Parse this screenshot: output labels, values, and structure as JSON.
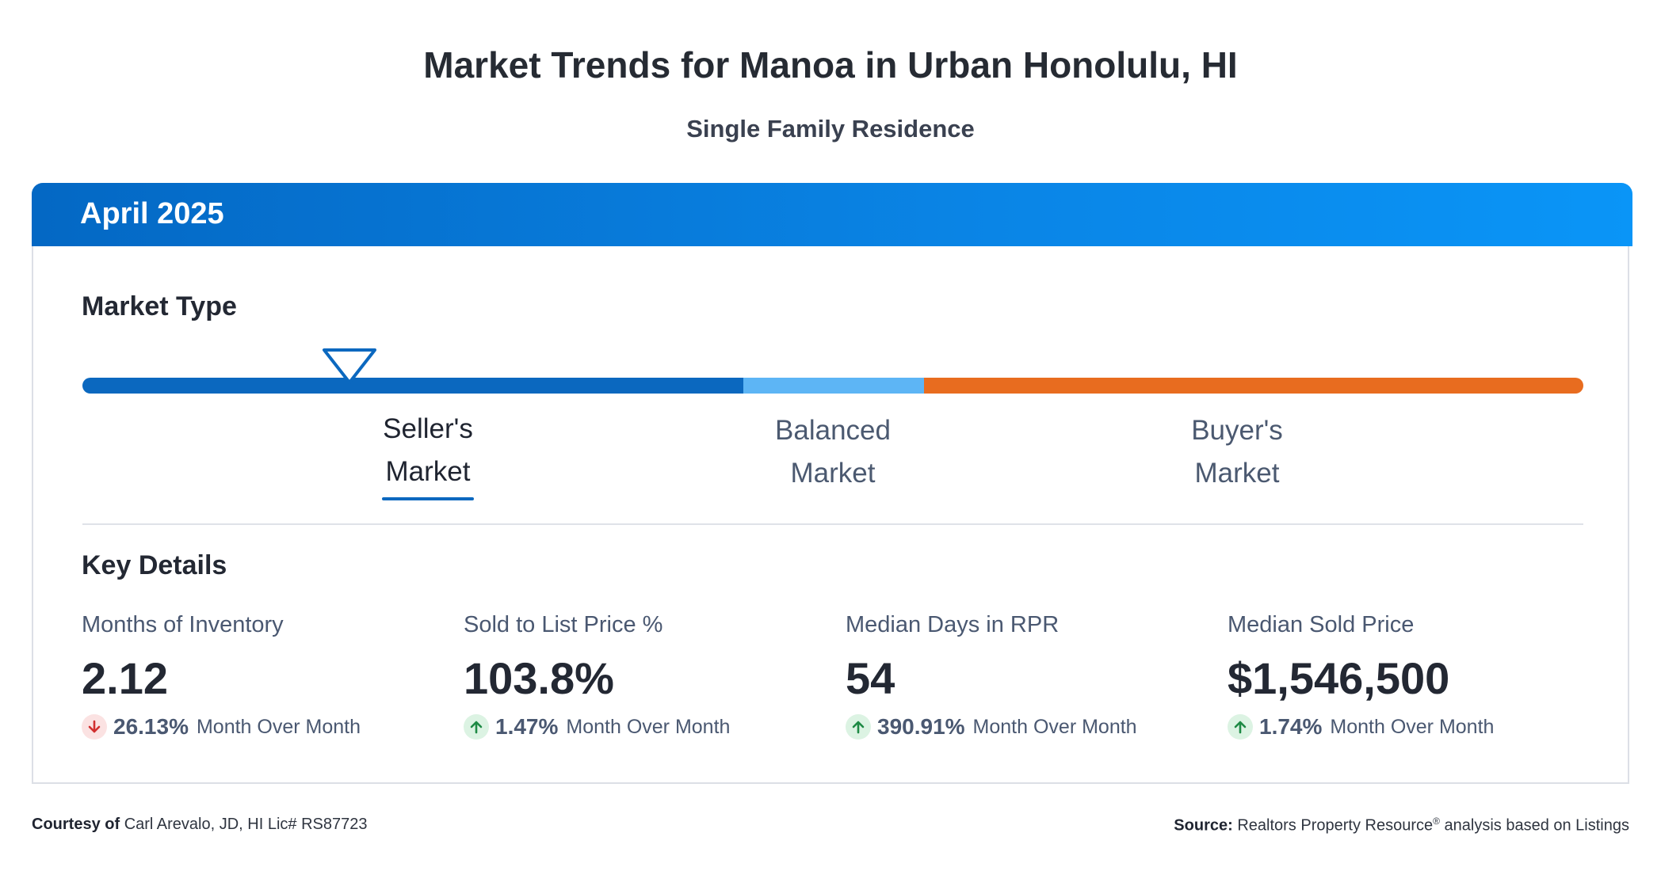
{
  "header": {
    "title": "Market Trends for Manoa in Urban Honolulu, HI",
    "subtitle": "Single Family Residence"
  },
  "card": {
    "month": "April 2025",
    "market_type": {
      "heading": "Market Type",
      "indicator_position_pct": 18,
      "colors": {
        "seller": "#0b68bf",
        "balanced": "#5db5f5",
        "buyer": "#e86c1f"
      },
      "labels": [
        {
          "line1": "Seller's",
          "line2": "Market",
          "active": true
        },
        {
          "line1": "Balanced",
          "line2": "Market",
          "active": false
        },
        {
          "line1": "Buyer's",
          "line2": "Market",
          "active": false
        }
      ]
    },
    "key_details": {
      "heading": "Key Details",
      "stats": [
        {
          "label": "Months of Inventory",
          "value": "2.12",
          "direction": "down",
          "change": "26.13%",
          "change_label": "Month Over Month"
        },
        {
          "label": "Sold to List Price %",
          "value": "103.8%",
          "direction": "up",
          "change": "1.47%",
          "change_label": "Month Over Month"
        },
        {
          "label": "Median Days in RPR",
          "value": "54",
          "direction": "up",
          "change": "390.91%",
          "change_label": "Month Over Month"
        },
        {
          "label": "Median Sold Price",
          "value": "$1,546,500",
          "direction": "up",
          "change": "1.74%",
          "change_label": "Month Over Month"
        }
      ]
    }
  },
  "footer": {
    "courtesy_label": "Courtesy of",
    "courtesy_text": "Carl Arevalo, JD, HI Lic# RS87723",
    "source_label": "Source:",
    "source_name": "Realtors Property Resource",
    "source_reg": "®",
    "source_rest": " analysis based on Listings"
  }
}
